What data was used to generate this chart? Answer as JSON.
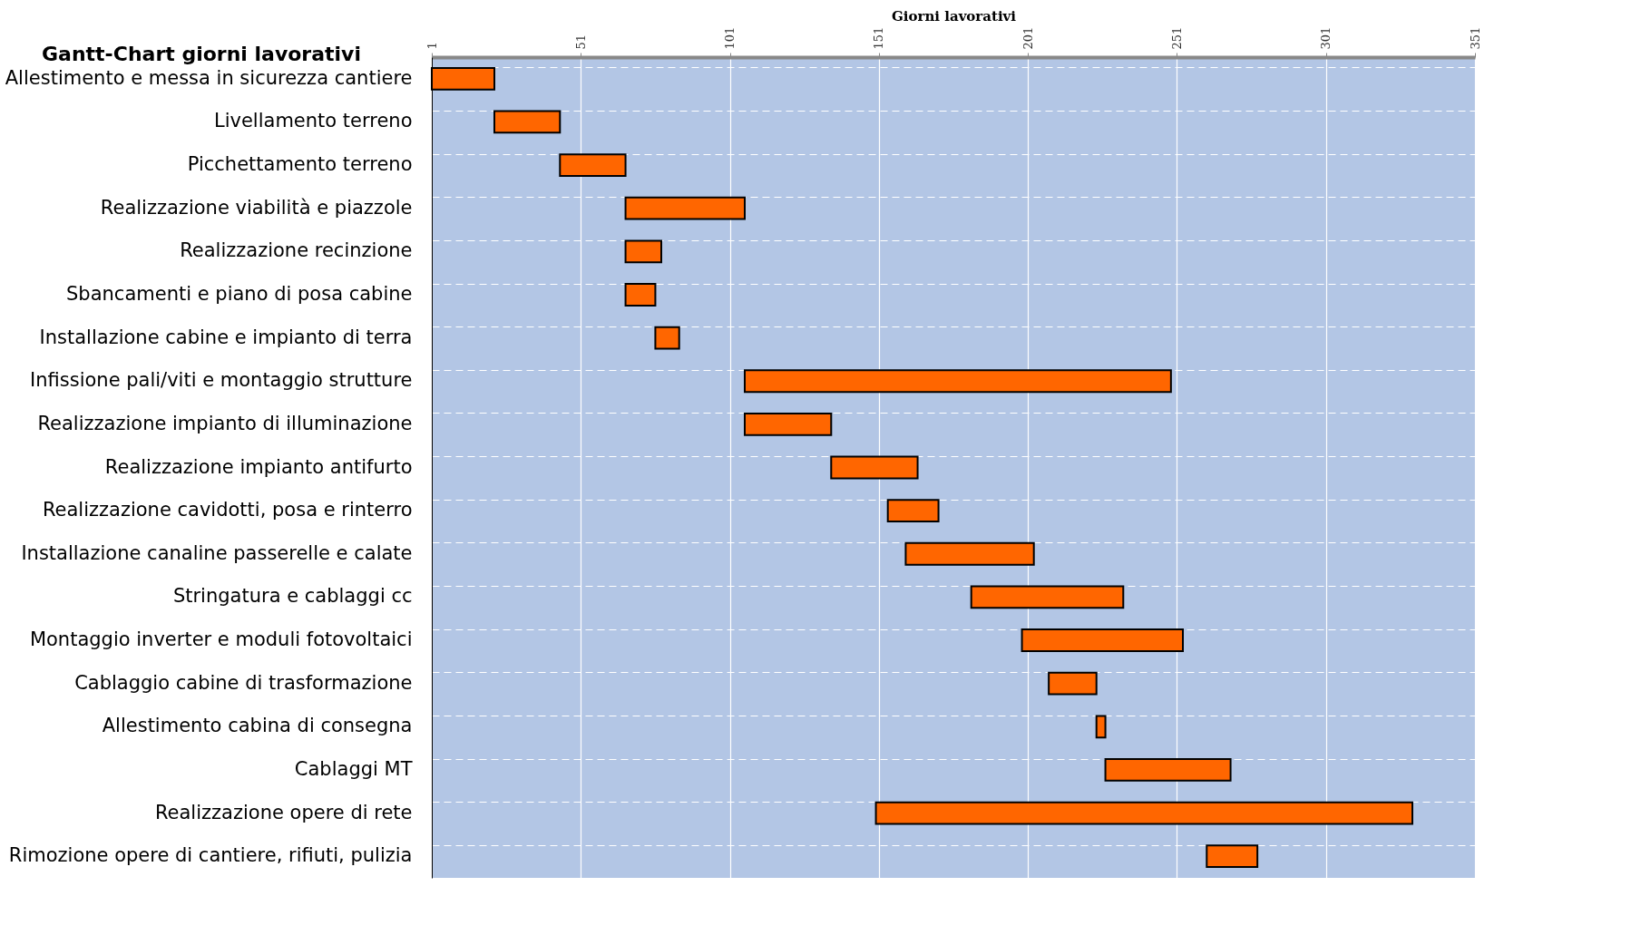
{
  "chart_data": {
    "type": "bar",
    "orientation": "horizontal",
    "title": "Gantt-Chart giorni lavorativi",
    "xlabel": "Giorni lavorativi",
    "categories": [
      "Allestimento e messa in sicurezza cantiere",
      "Livellamento terreno",
      "Picchettamento terreno",
      "Realizzazione viabilità e piazzole",
      "Realizzazione recinzione",
      "Sbancamenti e piano di posa cabine",
      "Installazione cabine e impianto di terra",
      "Infissione pali/viti e montaggio strutture",
      "Realizzazione impianto di illuminazione",
      "Realizzazione impianto antifurto",
      "Realizzazione cavidotti, posa e rinterro",
      "Installazione canaline passerelle e calate",
      "Stringatura e cablaggi cc",
      "Montaggio inverter e moduli fotovoltaici",
      "Cablaggio cabine di trasformazione",
      "Allestimento cabina di consegna",
      "Cablaggi MT",
      "Realizzazione opere di rete",
      "Rimozione opere di cantiere, rifiuti, pulizia"
    ],
    "base": [
      1,
      22,
      44,
      66,
      66,
      66,
      76,
      106,
      106,
      135,
      154,
      160,
      182,
      199,
      208,
      224,
      227,
      150,
      261
    ],
    "values": [
      21,
      22,
      22,
      40,
      12,
      10,
      8,
      143,
      29,
      29,
      17,
      43,
      51,
      54,
      16,
      3,
      42,
      180,
      17
    ],
    "color": "#ff6600",
    "xlim": [
      1,
      351
    ],
    "xticks": [
      1,
      51,
      101,
      151,
      201,
      251,
      301,
      351
    ],
    "grid": true
  }
}
